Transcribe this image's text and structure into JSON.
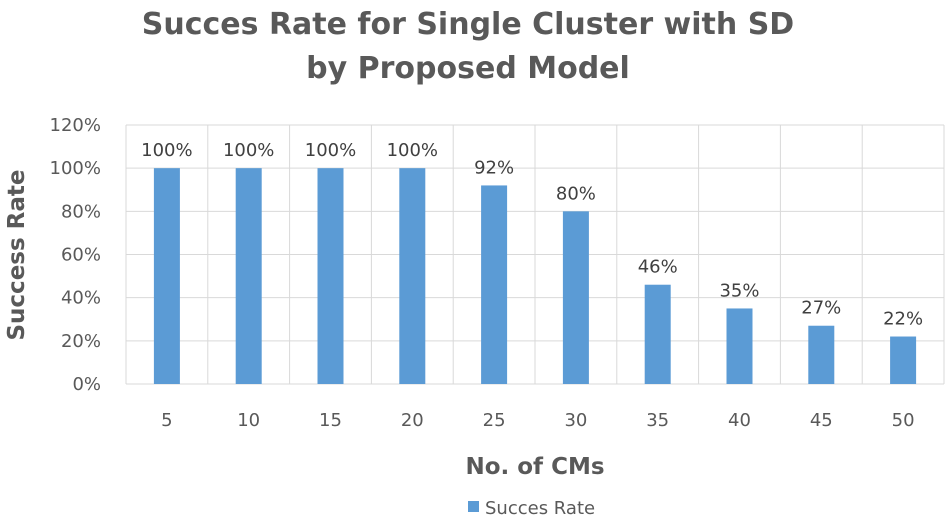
{
  "chart_data": {
    "type": "bar",
    "title": [
      "Succes Rate for Single Cluster with SD",
      "by Proposed Model"
    ],
    "xlabel": "No. of CMs",
    "ylabel": "Success Rate",
    "categories": [
      "5",
      "10",
      "15",
      "20",
      "25",
      "30",
      "35",
      "40",
      "45",
      "50"
    ],
    "series": [
      {
        "name": "Succes Rate",
        "color": "#5b9bd5",
        "values": [
          100,
          100,
          100,
          100,
          92,
          80,
          46,
          35,
          27,
          22
        ],
        "labels": [
          "100%",
          "100%",
          "100%",
          "100%",
          "92%",
          "80%",
          "46%",
          "35%",
          "27%",
          "22%"
        ]
      }
    ],
    "ylim": [
      0,
      120
    ],
    "yticks": [
      0,
      20,
      40,
      60,
      80,
      100,
      120
    ],
    "ytick_labels": [
      "0%",
      "20%",
      "40%",
      "60%",
      "80%",
      "100%",
      "120%"
    ],
    "grid": true,
    "legend": "bottom-center"
  }
}
